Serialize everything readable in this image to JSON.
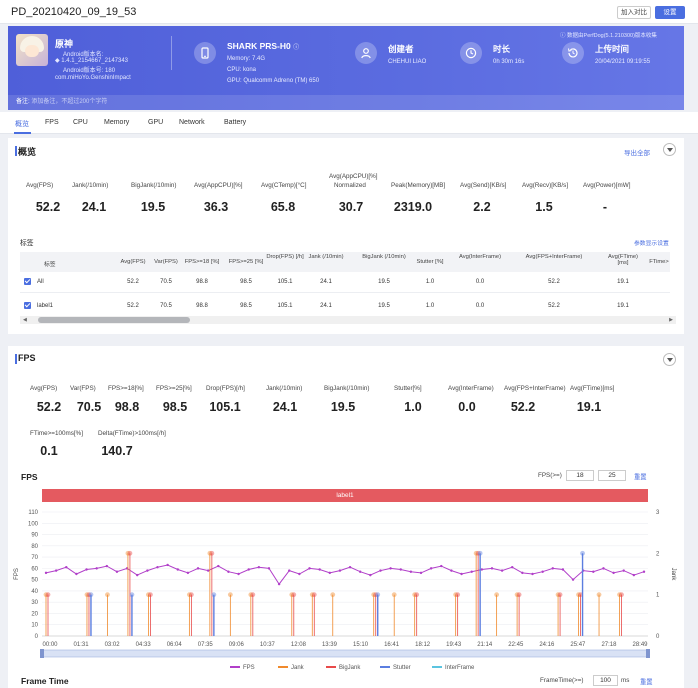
{
  "header": {
    "title": "PD_20210420_09_19_53",
    "compare_label": "加入对比",
    "settings_label": "设置"
  },
  "banner": {
    "app_name": "原神",
    "app_lines": [
      "Android版本名:",
      "1.4.1_2154667_2147343",
      "Android版本号: 180",
      "com.miHoYo.GenshinImpact"
    ],
    "device_name": "SHARK PRS-H0",
    "device_lines": [
      "Memory: 7.4G",
      "CPU: kona",
      "GPU: Qualcomm Adreno (TM) 650"
    ],
    "creator_label": "创建者",
    "creator_value": "CHEHUI LIAO",
    "duration_label": "时长",
    "duration_value": "0h 30m 16s",
    "upload_label": "上传时间",
    "upload_value": "20/04/2021 09:19:55",
    "notice": "数据由PerfDog(5.1.210300)版本收集",
    "remark_label": "备注:",
    "remark_placeholder": "添加备注，不超过200个字符",
    "accent": "#5565dc"
  },
  "tabs": [
    "概览",
    "FPS",
    "CPU",
    "Memory",
    "GPU",
    "Network",
    "Battery"
  ],
  "overview": {
    "title": "概览",
    "export_label": "导出全部",
    "metrics": [
      {
        "label": "Avg(FPS)",
        "value": "52.2"
      },
      {
        "label": "Jank(/10min)",
        "value": "24.1"
      },
      {
        "label": "BigJank(/10min)",
        "value": "19.5"
      },
      {
        "label": "Avg(AppCPU)[%]",
        "value": "36.3"
      },
      {
        "label": "Avg(CTemp)[°C]",
        "value": "65.8"
      },
      {
        "label": "Avg(AppCPU)[%]",
        "label2": "Normalized",
        "value": "30.7"
      },
      {
        "label": "Peak(Memory)[MB]",
        "value": "2319.0"
      },
      {
        "label": "Avg(Send)[KB/s]",
        "value": "2.2"
      },
      {
        "label": "Avg(Recv)[KB/s]",
        "value": "1.5"
      },
      {
        "label": "Avg(Power)[mW]",
        "value": "-"
      }
    ],
    "tags_label": "标签",
    "param_settings": "参数显示设置",
    "columns": [
      "标签",
      "Avg(FPS)",
      "Var(FPS)",
      "FPS>=18 [%]",
      "FPS>=25 [%]",
      "Drop(FPS) [/h]",
      "Jank (/10min)",
      "BigJank (/10min)",
      "Stutter [%]",
      "Avg(InterFrame)",
      "Avg(FPS+InterFrame)",
      "Avg(FTime) [ms]",
      "FTime>"
    ],
    "rows": [
      {
        "name": "All",
        "cells": [
          "52.2",
          "70.5",
          "98.8",
          "98.5",
          "105.1",
          "24.1",
          "19.5",
          "1.0",
          "0.0",
          "52.2",
          "19.1"
        ]
      },
      {
        "name": "label1",
        "cells": [
          "52.2",
          "70.5",
          "98.8",
          "98.5",
          "105.1",
          "24.1",
          "19.5",
          "1.0",
          "0.0",
          "52.2",
          "19.1"
        ]
      }
    ]
  },
  "fps_section": {
    "title": "FPS",
    "metrics": [
      {
        "label": "Avg(FPS)",
        "value": "52.2"
      },
      {
        "label": "Var(FPS)",
        "value": "70.5"
      },
      {
        "label": "FPS>=18[%]",
        "value": "98.8"
      },
      {
        "label": "FPS>=25[%]",
        "value": "98.5"
      },
      {
        "label": "Drop(FPS)[/h]",
        "value": "105.1"
      },
      {
        "label": "Jank(/10min)",
        "value": "24.1"
      },
      {
        "label": "BigJank(/10min)",
        "value": "19.5"
      },
      {
        "label": "Stutter[%]",
        "value": "1.0"
      },
      {
        "label": "Avg(InterFrame)",
        "value": "0.0"
      },
      {
        "label": "Avg(FPS+InterFrame)",
        "value": "52.2"
      },
      {
        "label": "Avg(FTime)[ms]",
        "value": "19.1"
      }
    ],
    "metrics2": [
      {
        "label": "FTime>=100ms[%]",
        "value": "0.1"
      },
      {
        "label": "Delta(FTime)>100ms[/h]",
        "value": "140.7"
      }
    ],
    "chart_title": "FPS",
    "fps_filter_label": "FPS(>=)",
    "fps_filter_values": [
      "18",
      "25"
    ],
    "reset_label": "重置",
    "label_bar": "label1",
    "frame_time_title": "Frame Time",
    "frame_time_filter_label": "FrameTime(>=)",
    "frame_time_value": "100",
    "frame_time_unit": "ms",
    "reset2_label": "重置"
  },
  "chart_data": {
    "type": "line",
    "xlabel": "",
    "ylabel": "FPS",
    "y2label": "Jank",
    "ylim": [
      0,
      110
    ],
    "y2lim": [
      0,
      3
    ],
    "yticks": [
      0,
      10,
      20,
      30,
      40,
      50,
      60,
      70,
      80,
      90,
      100,
      110
    ],
    "y2ticks": [
      0,
      1,
      2,
      3
    ],
    "x_ticks": [
      "00:00",
      "01:31",
      "03:02",
      "04:33",
      "06:04",
      "07:35",
      "09:06",
      "10:37",
      "12:08",
      "13:39",
      "15:10",
      "16:41",
      "18:12",
      "19:43",
      "21:14",
      "22:45",
      "24:16",
      "25:47",
      "27:18",
      "28:49"
    ],
    "legend_position": "bottom",
    "series": [
      {
        "name": "FPS",
        "color": "#b13fc9",
        "values": [
          56,
          58,
          61,
          55,
          59,
          60,
          62,
          57,
          60,
          54,
          58,
          61,
          63,
          59,
          56,
          60,
          58,
          62,
          57,
          55,
          59,
          61,
          60,
          46,
          58,
          55,
          60,
          59,
          56,
          58,
          61,
          57,
          54,
          58,
          60,
          59,
          57,
          56,
          60,
          62,
          58,
          55,
          57,
          59,
          60,
          58,
          61,
          56,
          55,
          57,
          60,
          59,
          50,
          58,
          57,
          60,
          56,
          58,
          54,
          57
        ]
      },
      {
        "name": "Jank",
        "color": "#f08a2c",
        "values": [
          1,
          0,
          1,
          1,
          2,
          1,
          0,
          1,
          2,
          1,
          1,
          0,
          1,
          1,
          1,
          0,
          1,
          1,
          1,
          0,
          1,
          2,
          1,
          1,
          0,
          1,
          1,
          1,
          1,
          0
        ]
      },
      {
        "name": "BigJank",
        "color": "#e84a4a",
        "values": [
          1,
          0,
          1,
          0,
          2,
          1,
          0,
          1,
          2,
          0,
          1,
          0,
          1,
          1,
          0,
          0,
          1,
          0,
          1,
          0,
          1,
          2,
          0,
          1,
          0,
          1,
          1,
          0,
          1,
          0
        ]
      },
      {
        "name": "Stutter",
        "color": "#5b7ee0",
        "values": [
          0,
          0,
          1,
          0,
          1,
          0,
          0,
          0,
          1,
          0,
          0,
          0,
          0,
          0,
          0,
          0,
          1,
          0,
          0,
          0,
          0,
          2,
          0,
          0,
          0,
          0,
          2,
          0,
          0,
          0
        ]
      },
      {
        "name": "InterFrame",
        "color": "#5bc4e0",
        "values": []
      }
    ]
  }
}
